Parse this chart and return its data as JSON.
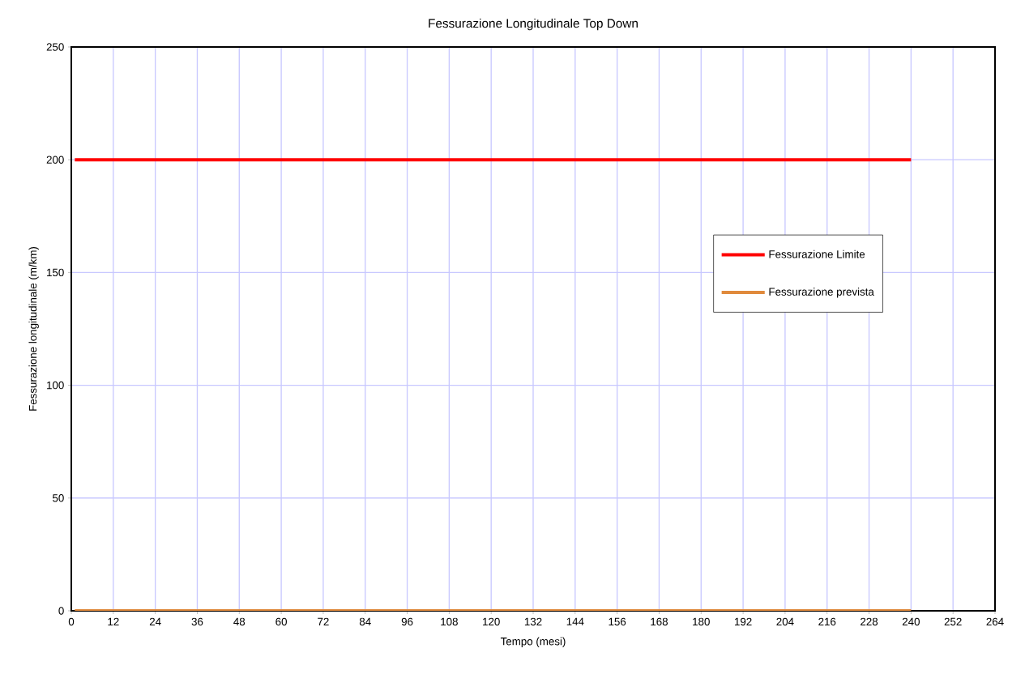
{
  "chart_data": {
    "type": "line",
    "title": "Fessurazione Longitudinale Top Down",
    "xlabel": "Tempo (mesi)",
    "ylabel": "Fessurazione longitudinale (m/km)",
    "x": [
      1,
      240
    ],
    "series": [
      {
        "name": "Fessurazione Limite",
        "color": "#ff0000",
        "values": [
          200,
          200
        ]
      },
      {
        "name": "Fessurazione prevista",
        "color": "#e08a3c",
        "values": [
          0,
          0
        ]
      }
    ],
    "xlim": [
      0,
      264
    ],
    "ylim": [
      0,
      250
    ],
    "xticks": [
      0,
      12,
      24,
      36,
      48,
      60,
      72,
      84,
      96,
      108,
      120,
      132,
      144,
      156,
      168,
      180,
      192,
      204,
      216,
      228,
      240,
      252,
      264
    ],
    "yticks": [
      0,
      50,
      100,
      150,
      200,
      250
    ],
    "grid": true,
    "legend": "right",
    "marker": "none"
  }
}
